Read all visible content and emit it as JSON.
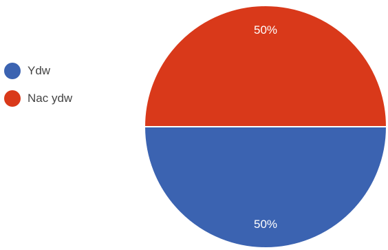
{
  "chart_data": {
    "type": "pie",
    "title": "",
    "categories": [
      "Ydw",
      "Nac ydw"
    ],
    "values": [
      50,
      50
    ],
    "value_labels": [
      "50%",
      "50%"
    ],
    "colors": [
      "#3b63b1",
      "#d9391a"
    ],
    "legend_position": "left",
    "start_orientation": "bottom-half first series, top-half second series"
  }
}
